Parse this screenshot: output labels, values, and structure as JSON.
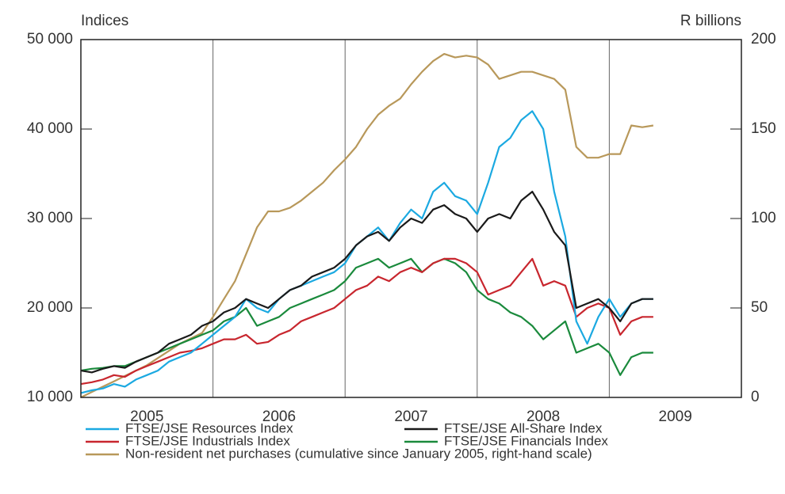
{
  "chart_data": {
    "type": "line",
    "ylabel": "Indices",
    "y2label": "R billions",
    "xlim": [
      2005,
      2010
    ],
    "xticks": [
      {
        "value": 2005.5,
        "label": "2005"
      },
      {
        "value": 2006.5,
        "label": "2006"
      },
      {
        "value": 2007.5,
        "label": "2007"
      },
      {
        "value": 2008.5,
        "label": "2008"
      },
      {
        "value": 2009.5,
        "label": "2009"
      }
    ],
    "xgrid": [
      2006,
      2007,
      2008,
      2009
    ],
    "ylim": [
      10000,
      50000
    ],
    "yticks": [
      {
        "value": 10000,
        "label": "10 000"
      },
      {
        "value": 20000,
        "label": "20 000"
      },
      {
        "value": 30000,
        "label": "30 000"
      },
      {
        "value": 40000,
        "label": "40 000"
      },
      {
        "value": 50000,
        "label": "50 000"
      }
    ],
    "y2lim": [
      0,
      200
    ],
    "y2ticks": [
      0,
      50,
      100,
      150,
      200
    ],
    "x": [
      2005,
      2005.083,
      2005.167,
      2005.25,
      2005.333,
      2005.417,
      2005.5,
      2005.583,
      2005.667,
      2005.75,
      2005.833,
      2005.917,
      2006,
      2006.083,
      2006.167,
      2006.25,
      2006.333,
      2006.417,
      2006.5,
      2006.583,
      2006.667,
      2006.75,
      2006.833,
      2006.917,
      2007,
      2007.083,
      2007.167,
      2007.25,
      2007.333,
      2007.417,
      2007.5,
      2007.583,
      2007.667,
      2007.75,
      2007.833,
      2007.917,
      2008,
      2008.083,
      2008.167,
      2008.25,
      2008.333,
      2008.417,
      2008.5,
      2008.583,
      2008.667,
      2008.75,
      2008.833,
      2008.917,
      2009,
      2009.083,
      2009.167,
      2009.25,
      2009.333
    ],
    "series": [
      {
        "name": "FTSE/JSE Resources Index",
        "color": "#1ba9e1",
        "values": [
          10500,
          10800,
          11000,
          11500,
          11200,
          12000,
          12500,
          13000,
          14000,
          14500,
          15000,
          16000,
          17000,
          18000,
          19000,
          21000,
          20000,
          19500,
          21000,
          22000,
          22500,
          23000,
          23500,
          24000,
          25000,
          27000,
          28000,
          29000,
          27500,
          29500,
          31000,
          30000,
          33000,
          34000,
          32500,
          32000,
          30500,
          34000,
          38000,
          39000,
          41000,
          42000,
          40000,
          33000,
          28000,
          18500,
          16000,
          19000,
          21000,
          19000,
          20500,
          21000,
          21000
        ]
      },
      {
        "name": "FTSE/JSE All-Share Index",
        "color": "#1a1a1a",
        "values": [
          13000,
          12800,
          13200,
          13500,
          13300,
          14000,
          14500,
          15000,
          16000,
          16500,
          17000,
          18000,
          18500,
          19500,
          20000,
          21000,
          20500,
          20000,
          21000,
          22000,
          22500,
          23500,
          24000,
          24500,
          25500,
          27000,
          28000,
          28500,
          27500,
          29000,
          30000,
          29500,
          31000,
          31500,
          30500,
          30000,
          28500,
          30000,
          30500,
          30000,
          32000,
          33000,
          31000,
          28500,
          27000,
          20000,
          20500,
          21000,
          20000,
          18500,
          20500,
          21000,
          21000
        ]
      },
      {
        "name": "FTSE/JSE Industrials Index",
        "color": "#c8262e",
        "values": [
          11500,
          11700,
          12000,
          12500,
          12300,
          13000,
          13500,
          14000,
          14500,
          15000,
          15200,
          15500,
          16000,
          16500,
          16500,
          17000,
          16000,
          16200,
          17000,
          17500,
          18500,
          19000,
          19500,
          20000,
          21000,
          22000,
          22500,
          23500,
          23000,
          24000,
          24500,
          24000,
          25000,
          25500,
          25500,
          25000,
          24000,
          21500,
          22000,
          22500,
          24000,
          25500,
          22500,
          23000,
          22500,
          19000,
          20000,
          20500,
          20000,
          17000,
          18500,
          19000,
          19000
        ]
      },
      {
        "name": "FTSE/JSE Financials Index",
        "color": "#1a8a3c",
        "values": [
          13000,
          13200,
          13300,
          13500,
          13500,
          14000,
          14500,
          15000,
          15500,
          16000,
          16500,
          17000,
          17500,
          18500,
          19000,
          20000,
          18000,
          18500,
          19000,
          20000,
          20500,
          21000,
          21500,
          22000,
          23000,
          24500,
          25000,
          25500,
          24500,
          25000,
          25500,
          24000,
          25000,
          25500,
          25000,
          24000,
          22000,
          21000,
          20500,
          19500,
          19000,
          18000,
          16500,
          17500,
          18500,
          15000,
          15500,
          16000,
          15000,
          12500,
          14500,
          15000,
          15000
        ]
      },
      {
        "name": "Non-resident net purchases (cumulative since January 2005, right-hand scale)",
        "color": "#b8985a",
        "axis": "y2",
        "values": [
          0,
          3,
          6,
          9,
          12,
          15,
          18,
          22,
          26,
          30,
          33,
          36,
          45,
          55,
          65,
          80,
          95,
          104,
          104,
          106,
          110,
          115,
          120,
          127,
          133,
          140,
          150,
          158,
          163,
          167,
          175,
          182,
          188,
          192,
          190,
          191,
          190,
          186,
          178,
          180,
          182,
          182,
          180,
          178,
          172,
          140,
          134,
          134,
          136,
          136,
          152,
          151,
          152
        ]
      }
    ]
  }
}
